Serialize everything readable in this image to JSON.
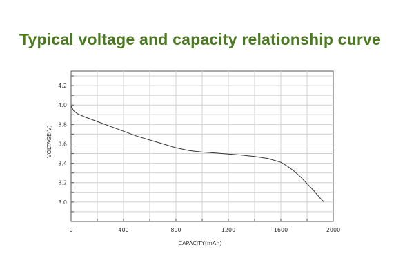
{
  "chart_data": {
    "type": "line",
    "title": "Typical voltage and capacity relationship curve",
    "xlabel": "CAPACITY(mAh)",
    "ylabel": "VOLTAGE(V)",
    "xlim": [
      0,
      2000
    ],
    "ylim": [
      2.8,
      4.35
    ],
    "x_ticks": [
      0,
      400,
      800,
      1200,
      1600,
      2000
    ],
    "y_ticks": [
      3.0,
      3.2,
      3.4,
      3.6,
      3.8,
      4.0,
      4.2
    ],
    "x_tick_labels": [
      "0",
      "400",
      "800",
      "1200",
      "1600",
      "2000"
    ],
    "y_tick_labels": [
      "3.0",
      "3.2",
      "3.4",
      "3.6",
      "3.8",
      "4.0",
      "4.2"
    ],
    "grid": true,
    "series": [
      {
        "x": [
          0,
          20,
          50,
          100,
          200,
          300,
          400,
          500,
          600,
          700,
          800,
          900,
          1000,
          1100,
          1200,
          1300,
          1400,
          1500,
          1550,
          1600,
          1650,
          1700,
          1750,
          1800,
          1850,
          1900,
          1930
        ],
        "y": [
          3.99,
          3.94,
          3.91,
          3.88,
          3.83,
          3.78,
          3.73,
          3.68,
          3.64,
          3.6,
          3.56,
          3.53,
          3.515,
          3.505,
          3.495,
          3.485,
          3.47,
          3.45,
          3.43,
          3.41,
          3.37,
          3.32,
          3.26,
          3.19,
          3.12,
          3.04,
          3.0
        ],
        "color": "#333333"
      }
    ]
  }
}
